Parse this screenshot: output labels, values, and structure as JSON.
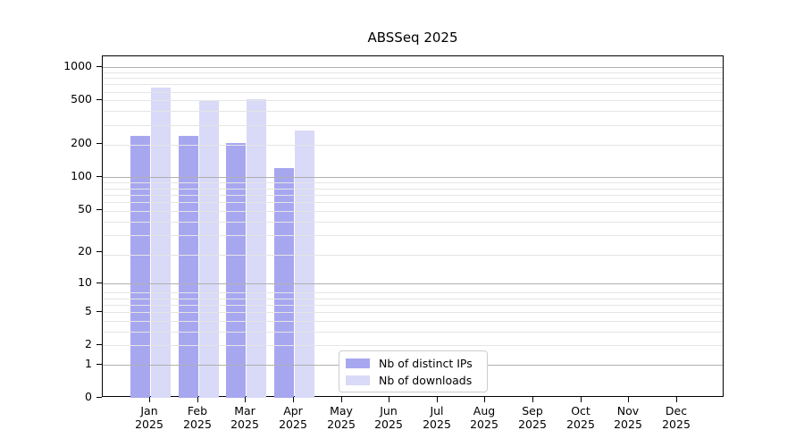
{
  "chart_data": {
    "type": "bar",
    "title": "ABSSeq 2025",
    "xlabel": "",
    "ylabel": "",
    "months": [
      "Jan",
      "Feb",
      "Mar",
      "Apr",
      "May",
      "Jun",
      "Jul",
      "Aug",
      "Sep",
      "Oct",
      "Nov",
      "Dec"
    ],
    "year": "2025",
    "series": [
      {
        "name": "Nb of distinct IPs",
        "color": "#a7a7f0",
        "values": [
          238,
          238,
          205,
          120,
          0,
          0,
          0,
          0,
          0,
          0,
          0,
          0
        ]
      },
      {
        "name": "Nb of downloads",
        "color": "#d9d9f8",
        "values": [
          650,
          505,
          515,
          265,
          0,
          0,
          0,
          0,
          0,
          0,
          0,
          0
        ]
      }
    ],
    "y_axis": {
      "scale": "log10(1+value)",
      "ticks": [
        0,
        1,
        2,
        5,
        10,
        20,
        50,
        100,
        200,
        500,
        1000
      ],
      "major_gridlines": [
        1,
        10,
        100,
        1000
      ],
      "minor_gridlines": [
        1,
        2,
        3,
        4,
        5,
        6,
        7,
        8,
        19,
        29,
        39,
        49,
        59,
        69,
        79,
        89,
        199,
        299,
        399,
        499,
        599,
        699,
        799,
        899
      ],
      "ylim": [
        0,
        1260
      ],
      "grid": true
    },
    "legend_position": "lower center inside"
  },
  "colors": {
    "bar_distinct_ips": "#a7a7f0",
    "bar_downloads": "#d9d9f8",
    "grid_major": "#b0b0b0",
    "grid_minor": "#e5e5e5",
    "spine": "#000000",
    "text": "#000000",
    "legend_border": "#cccccc",
    "background": "#ffffff"
  }
}
